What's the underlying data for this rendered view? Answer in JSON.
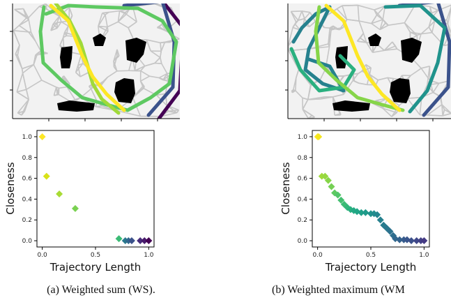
{
  "captions": {
    "a": "(a) Weighted sum (WS).",
    "b": "(b) Weighted maximum (WM"
  },
  "chart_data": [
    {
      "type": "scatter",
      "panel": "a",
      "xlabel": "Trajectory Length",
      "ylabel": "Closeness",
      "xlim": [
        -0.05,
        1.05
      ],
      "ylim": [
        -0.06,
        1.06
      ],
      "xticks": [
        "0.0",
        "0.5",
        "1.0"
      ],
      "yticks": [
        "0.0",
        "0.2",
        "0.4",
        "0.6",
        "0.8",
        "1.0"
      ],
      "colormap": "viridis",
      "marker": "diamond",
      "points": [
        {
          "x": 0.0,
          "y": 1.0,
          "color": "#fde725"
        },
        {
          "x": 0.04,
          "y": 0.62,
          "color": "#d8e219"
        },
        {
          "x": 0.16,
          "y": 0.45,
          "color": "#a8db34"
        },
        {
          "x": 0.31,
          "y": 0.31,
          "color": "#7ad151"
        },
        {
          "x": 0.72,
          "y": 0.02,
          "color": "#3bbb75"
        },
        {
          "x": 0.78,
          "y": 0.0,
          "color": "#2a788e"
        },
        {
          "x": 0.81,
          "y": 0.0,
          "color": "#31688e"
        },
        {
          "x": 0.84,
          "y": 0.0,
          "color": "#3b528b"
        },
        {
          "x": 0.92,
          "y": 0.0,
          "color": "#472c7a"
        },
        {
          "x": 0.96,
          "y": 0.0,
          "color": "#481a6c"
        },
        {
          "x": 1.0,
          "y": 0.0,
          "color": "#440154"
        }
      ]
    },
    {
      "type": "scatter",
      "panel": "b",
      "xlabel": "Trajectory Length",
      "ylabel": "Closeness",
      "xlim": [
        -0.05,
        1.05
      ],
      "ylim": [
        -0.06,
        1.06
      ],
      "xticks": [
        "0.0",
        "0.5",
        "1.0"
      ],
      "yticks": [
        "0.0",
        "0.2",
        "0.4",
        "0.6",
        "0.8",
        "1.0"
      ],
      "colormap": "viridis",
      "marker": "diamond",
      "points": [
        {
          "x": 0.0,
          "y": 1.0,
          "color": "#fde725"
        },
        {
          "x": 0.01,
          "y": 1.0,
          "color": "#f4e61e"
        },
        {
          "x": 0.04,
          "y": 0.62,
          "color": "#a0da39"
        },
        {
          "x": 0.07,
          "y": 0.62,
          "color": "#95d840"
        },
        {
          "x": 0.1,
          "y": 0.58,
          "color": "#86d549"
        },
        {
          "x": 0.13,
          "y": 0.52,
          "color": "#75d054"
        },
        {
          "x": 0.16,
          "y": 0.46,
          "color": "#5ec962"
        },
        {
          "x": 0.19,
          "y": 0.44,
          "color": "#52c569"
        },
        {
          "x": 0.22,
          "y": 0.39,
          "color": "#44bf70"
        },
        {
          "x": 0.25,
          "y": 0.35,
          "color": "#3bbb75"
        },
        {
          "x": 0.28,
          "y": 0.32,
          "color": "#32b67a"
        },
        {
          "x": 0.31,
          "y": 0.3,
          "color": "#2ab07f"
        },
        {
          "x": 0.34,
          "y": 0.29,
          "color": "#24aa83"
        },
        {
          "x": 0.37,
          "y": 0.28,
          "color": "#21a685"
        },
        {
          "x": 0.41,
          "y": 0.27,
          "color": "#1fa188"
        },
        {
          "x": 0.45,
          "y": 0.27,
          "color": "#1f9a8a"
        },
        {
          "x": 0.5,
          "y": 0.26,
          "color": "#20938c"
        },
        {
          "x": 0.53,
          "y": 0.26,
          "color": "#228d8d"
        },
        {
          "x": 0.56,
          "y": 0.25,
          "color": "#24868e"
        },
        {
          "x": 0.59,
          "y": 0.2,
          "color": "#26818e"
        },
        {
          "x": 0.62,
          "y": 0.15,
          "color": "#287c8e"
        },
        {
          "x": 0.65,
          "y": 0.12,
          "color": "#2a788e"
        },
        {
          "x": 0.68,
          "y": 0.09,
          "color": "#2c728e"
        },
        {
          "x": 0.71,
          "y": 0.05,
          "color": "#2e6e8e"
        },
        {
          "x": 0.73,
          "y": 0.02,
          "color": "#31688e"
        },
        {
          "x": 0.77,
          "y": 0.01,
          "color": "#33628d"
        },
        {
          "x": 0.81,
          "y": 0.01,
          "color": "#365c8d"
        },
        {
          "x": 0.84,
          "y": 0.01,
          "color": "#39568c"
        },
        {
          "x": 0.88,
          "y": 0.0,
          "color": "#3c508b"
        },
        {
          "x": 0.93,
          "y": 0.0,
          "color": "#3f4889"
        },
        {
          "x": 0.97,
          "y": 0.0,
          "color": "#424086"
        },
        {
          "x": 1.0,
          "y": 0.0,
          "color": "#443983"
        }
      ]
    }
  ]
}
